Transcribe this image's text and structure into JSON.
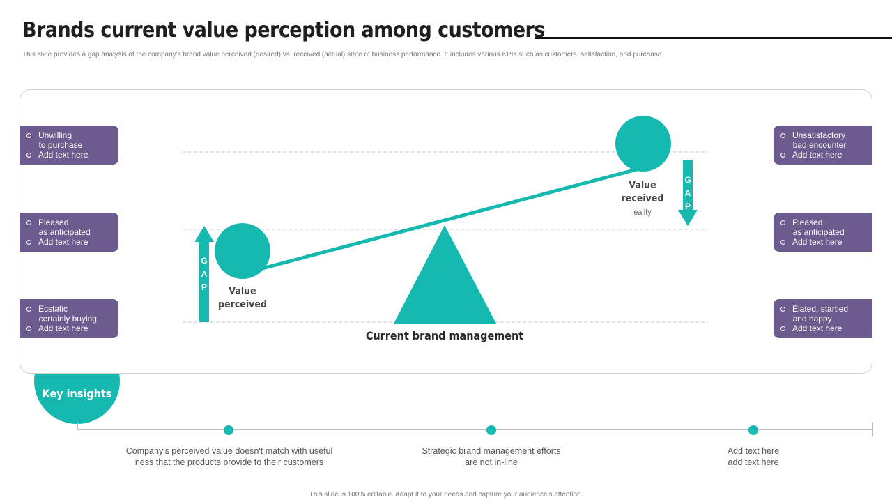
{
  "header": {
    "title": "Brands current value perception among customers",
    "subtitle": "This slide provides a gap analysis of the company's brand value perceived (desired) vs. received (actual) state of business performance. It includes various KPIs such as customers, satisfaction, and purchase."
  },
  "left_kpis": [
    {
      "line1": "Unwilling",
      "line2": "to purchase",
      "line3": "Add text here"
    },
    {
      "line1": "Pleased",
      "line2": "as anticipated",
      "line3": "Add text here"
    },
    {
      "line1": "Ecstatic",
      "line2": "certainly buying",
      "line3": "Add text here"
    }
  ],
  "right_kpis": [
    {
      "line1": "Unsatisfactory",
      "line2": "bad encounter",
      "line3": "Add text here"
    },
    {
      "line1": "Pleased",
      "line2": "as anticipated",
      "line3": "Add text here"
    },
    {
      "line1": "Elated, startled",
      "line2": "and happy",
      "line3": "Add text here"
    }
  ],
  "diagram": {
    "perceived_line1": "Value",
    "perceived_line2": "perceived",
    "received_line1": "Value",
    "received_line2": "received",
    "received_sub": "eality",
    "fulcrum_label": "Current brand management",
    "gap_letters": [
      "G",
      "A",
      "P"
    ]
  },
  "insights": {
    "title": "Key insights",
    "items": [
      "Company's perceived value doesn't match with useful\nness that the products provide  to their customers",
      "Strategic brand management efforts\nare not in-line",
      "Add text here\nadd text here"
    ]
  },
  "footer": "This slide is 100% editable.  Adapt it to your needs and capture your audience's attention.",
  "colors": {
    "teal": "#16b9b0",
    "purple": "#6b5b8f"
  }
}
